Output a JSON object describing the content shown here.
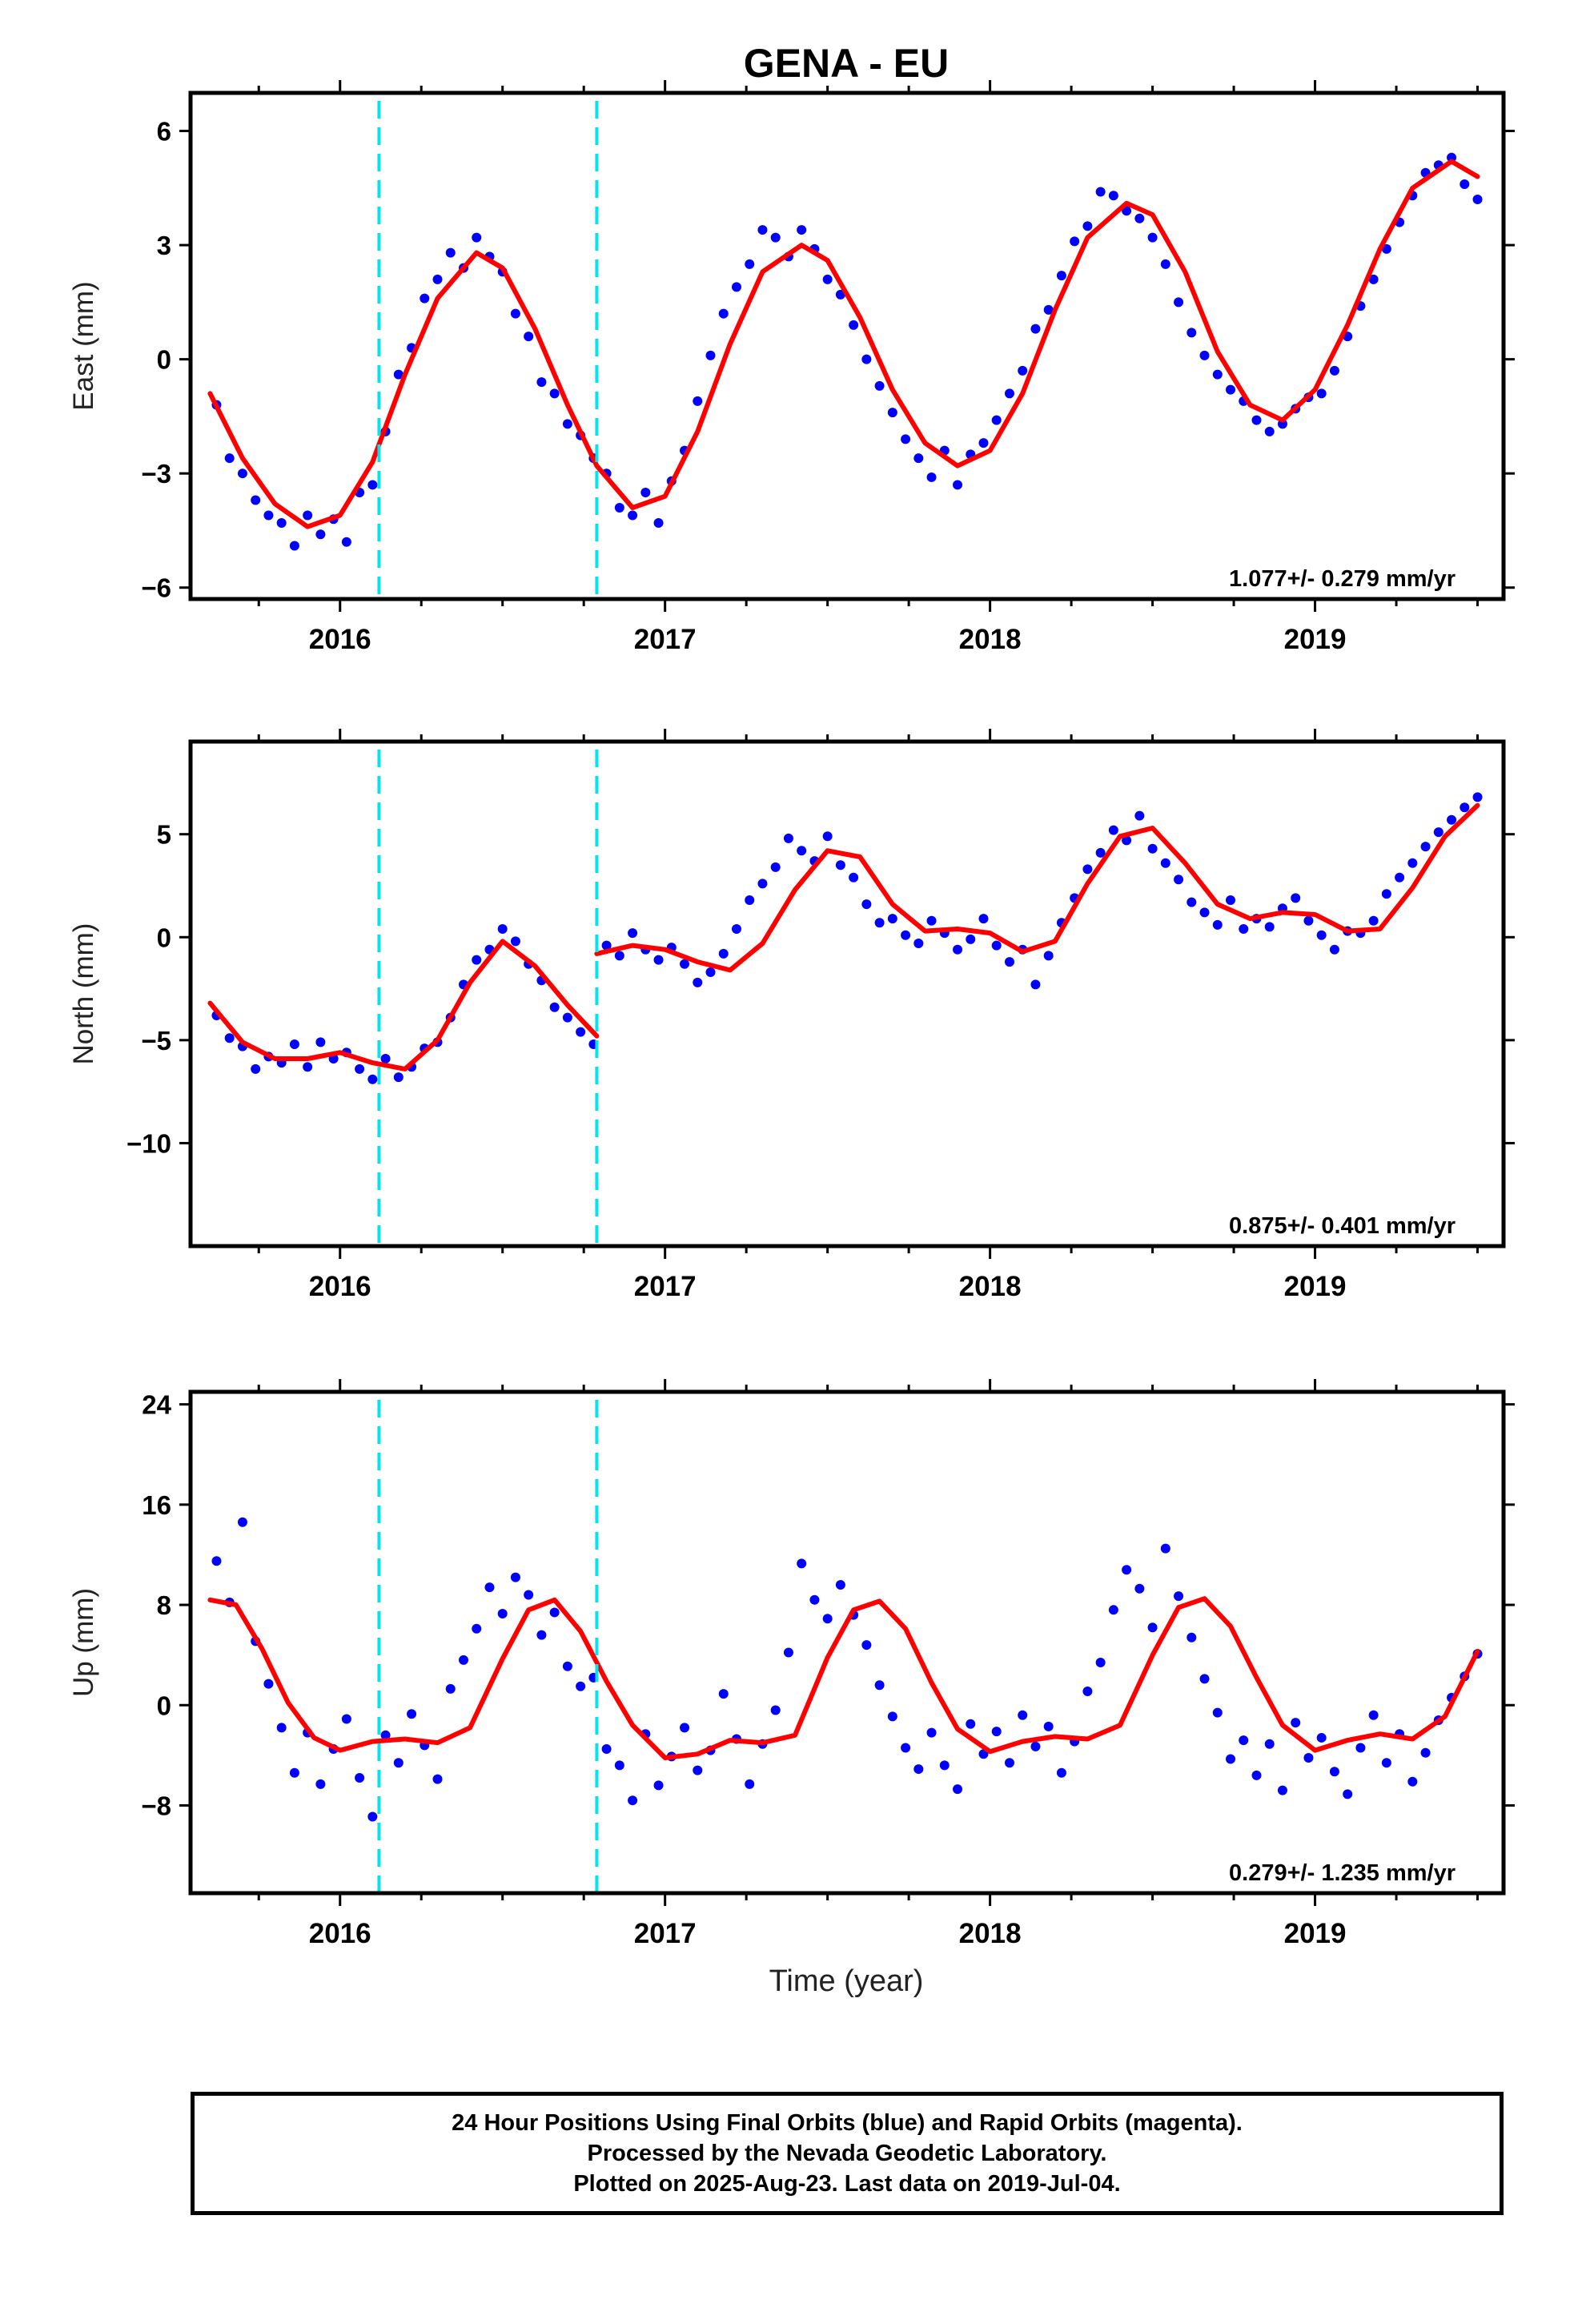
{
  "title": "GENA - EU",
  "footer": {
    "lines": [
      "24 Hour Positions Using Final Orbits (blue) and Rapid Orbits (magenta).",
      "Processed by the Nevada Geodetic Laboratory.",
      "Plotted on 2025-Aug-23. Last data on 2019-Jul-04."
    ]
  },
  "colors": {
    "points": "#0000ff",
    "fit": "#ff0000",
    "steps": "#00e5ee",
    "frame": "#000000"
  },
  "chart_data": [
    {
      "type": "scatter",
      "ylabel": "East (mm)",
      "xlabel": "",
      "xlim": [
        2015.54,
        2019.58
      ],
      "ylim": [
        -6.3,
        7
      ],
      "yticks": [
        -6,
        -3,
        0,
        3,
        6
      ],
      "ytick_labels": [
        "−6",
        "−3",
        "0",
        "3",
        "6"
      ],
      "xticks": [
        2016,
        2017,
        2018,
        2019
      ],
      "xtick_labels": [
        "2016",
        "2017",
        "2018",
        "2019"
      ],
      "steps": [
        2016.12,
        2016.79
      ],
      "rate_label": "1.077+/- 0.279 mm/yr",
      "series": [
        {
          "kind": "points",
          "x": [
            2015.62,
            2015.66,
            2015.7,
            2015.74,
            2015.78,
            2015.82,
            2015.86,
            2015.9,
            2015.94,
            2015.98,
            2016.02,
            2016.06,
            2016.1,
            2016.14,
            2016.18,
            2016.22,
            2016.26,
            2016.3,
            2016.34,
            2016.38,
            2016.42,
            2016.46,
            2016.5,
            2016.54,
            2016.58,
            2016.62,
            2016.66,
            2016.7,
            2016.74,
            2016.78,
            2016.82,
            2016.86,
            2016.9,
            2016.94,
            2016.98,
            2017.02,
            2017.06,
            2017.1,
            2017.14,
            2017.18,
            2017.22,
            2017.26,
            2017.3,
            2017.34,
            2017.38,
            2017.42,
            2017.46,
            2017.5,
            2017.54,
            2017.58,
            2017.62,
            2017.66,
            2017.7,
            2017.74,
            2017.78,
            2017.82,
            2017.86,
            2017.9,
            2017.94,
            2017.98,
            2018.02,
            2018.06,
            2018.1,
            2018.14,
            2018.18,
            2018.22,
            2018.26,
            2018.3,
            2018.34,
            2018.38,
            2018.42,
            2018.46,
            2018.5,
            2018.54,
            2018.58,
            2018.62,
            2018.66,
            2018.7,
            2018.74,
            2018.78,
            2018.82,
            2018.86,
            2018.9,
            2018.94,
            2018.98,
            2019.02,
            2019.06,
            2019.1,
            2019.14,
            2019.18,
            2019.22,
            2019.26,
            2019.3,
            2019.34,
            2019.38,
            2019.42,
            2019.46,
            2019.5
          ],
          "y": [
            -1.2,
            -2.6,
            -3.0,
            -3.7,
            -4.1,
            -4.3,
            -4.9,
            -4.1,
            -4.6,
            -4.2,
            -4.8,
            -3.5,
            -3.3,
            -1.9,
            -0.4,
            0.3,
            1.6,
            2.1,
            2.8,
            2.4,
            3.2,
            2.7,
            2.3,
            1.2,
            0.6,
            -0.6,
            -0.9,
            -1.7,
            -2.0,
            -2.6,
            -3.0,
            -3.9,
            -4.1,
            -3.5,
            -4.3,
            -3.2,
            -2.4,
            -1.1,
            0.1,
            1.2,
            1.9,
            2.5,
            3.4,
            3.2,
            2.7,
            3.4,
            2.9,
            2.1,
            1.7,
            0.9,
            0.0,
            -0.7,
            -1.4,
            -2.1,
            -2.6,
            -3.1,
            -2.4,
            -3.3,
            -2.5,
            -2.2,
            -1.6,
            -0.9,
            -0.3,
            0.8,
            1.3,
            2.2,
            3.1,
            3.5,
            4.4,
            4.3,
            3.9,
            3.7,
            3.2,
            2.5,
            1.5,
            0.7,
            0.1,
            -0.4,
            -0.8,
            -1.1,
            -1.6,
            -1.9,
            -1.7,
            -1.3,
            -1.0,
            -0.9,
            -0.3,
            0.6,
            1.4,
            2.1,
            2.9,
            3.6,
            4.3,
            4.9,
            5.1,
            5.3,
            4.6,
            4.2
          ]
        },
        {
          "kind": "fit",
          "x": [
            2015.6,
            2015.7,
            2015.8,
            2015.9,
            2016.0,
            2016.1,
            2016.2,
            2016.3,
            2016.42,
            2016.5,
            2016.6,
            2016.7,
            2016.79,
            2016.9,
            2017.0,
            2017.1,
            2017.2,
            2017.3,
            2017.42,
            2017.5,
            2017.6,
            2017.7,
            2017.8,
            2017.9,
            2018.0,
            2018.1,
            2018.2,
            2018.3,
            2018.42,
            2018.5,
            2018.6,
            2018.7,
            2018.8,
            2018.9,
            2019.0,
            2019.1,
            2019.2,
            2019.3,
            2019.42,
            2019.5
          ],
          "y": [
            -0.9,
            -2.6,
            -3.8,
            -4.4,
            -4.1,
            -2.7,
            -0.4,
            1.6,
            2.8,
            2.4,
            0.8,
            -1.2,
            -2.8,
            -3.9,
            -3.6,
            -1.9,
            0.4,
            2.3,
            3.0,
            2.6,
            1.1,
            -0.8,
            -2.2,
            -2.8,
            -2.4,
            -0.9,
            1.3,
            3.2,
            4.1,
            3.8,
            2.3,
            0.2,
            -1.2,
            -1.6,
            -0.8,
            0.9,
            2.9,
            4.5,
            5.2,
            4.8
          ]
        }
      ]
    },
    {
      "type": "scatter",
      "ylabel": "North (mm)",
      "xlabel": "",
      "xlim": [
        2015.54,
        2019.58
      ],
      "ylim": [
        -15,
        9.5
      ],
      "yticks": [
        -10,
        -5,
        0,
        5
      ],
      "ytick_labels": [
        "−10",
        "−5",
        "0",
        "5"
      ],
      "xticks": [
        2016,
        2017,
        2018,
        2019
      ],
      "xtick_labels": [
        "2016",
        "2017",
        "2018",
        "2019"
      ],
      "steps": [
        2016.12,
        2016.79
      ],
      "rate_label": "0.875+/- 0.401 mm/yr",
      "series": [
        {
          "kind": "points",
          "x": [
            2015.62,
            2015.66,
            2015.7,
            2015.74,
            2015.78,
            2015.82,
            2015.86,
            2015.9,
            2015.94,
            2015.98,
            2016.02,
            2016.06,
            2016.1,
            2016.14,
            2016.18,
            2016.22,
            2016.26,
            2016.3,
            2016.34,
            2016.38,
            2016.42,
            2016.46,
            2016.5,
            2016.54,
            2016.58,
            2016.62,
            2016.66,
            2016.7,
            2016.74,
            2016.78,
            2016.82,
            2016.86,
            2016.9,
            2016.94,
            2016.98,
            2017.02,
            2017.06,
            2017.1,
            2017.14,
            2017.18,
            2017.22,
            2017.26,
            2017.3,
            2017.34,
            2017.38,
            2017.42,
            2017.46,
            2017.5,
            2017.54,
            2017.58,
            2017.62,
            2017.66,
            2017.7,
            2017.74,
            2017.78,
            2017.82,
            2017.86,
            2017.9,
            2017.94,
            2017.98,
            2018.02,
            2018.06,
            2018.1,
            2018.14,
            2018.18,
            2018.22,
            2018.26,
            2018.3,
            2018.34,
            2018.38,
            2018.42,
            2018.46,
            2018.5,
            2018.54,
            2018.58,
            2018.62,
            2018.66,
            2018.7,
            2018.74,
            2018.78,
            2018.82,
            2018.86,
            2018.9,
            2018.94,
            2018.98,
            2019.02,
            2019.06,
            2019.1,
            2019.14,
            2019.18,
            2019.22,
            2019.26,
            2019.3,
            2019.34,
            2019.38,
            2019.42,
            2019.46,
            2019.5
          ],
          "y": [
            -3.8,
            -4.9,
            -5.3,
            -6.4,
            -5.8,
            -6.1,
            -5.2,
            -6.3,
            -5.1,
            -5.9,
            -5.6,
            -6.4,
            -6.9,
            -5.9,
            -6.8,
            -6.3,
            -5.4,
            -5.1,
            -3.9,
            -2.3,
            -1.1,
            -0.6,
            0.4,
            -0.2,
            -1.3,
            -2.1,
            -3.4,
            -3.9,
            -4.6,
            -5.2,
            -0.4,
            -0.9,
            0.2,
            -0.6,
            -1.1,
            -0.5,
            -1.3,
            -2.2,
            -1.7,
            -0.8,
            0.4,
            1.8,
            2.6,
            3.4,
            4.8,
            4.2,
            3.7,
            4.9,
            3.5,
            2.9,
            1.6,
            0.7,
            0.9,
            0.1,
            -0.3,
            0.8,
            0.2,
            -0.6,
            -0.1,
            0.9,
            -0.4,
            -1.2,
            -0.6,
            -2.3,
            -0.9,
            0.7,
            1.9,
            3.3,
            4.1,
            5.2,
            4.7,
            5.9,
            4.3,
            3.6,
            2.8,
            1.7,
            1.2,
            0.6,
            1.8,
            0.4,
            0.9,
            0.5,
            1.4,
            1.9,
            0.8,
            0.1,
            -0.6,
            0.3,
            0.2,
            0.8,
            2.1,
            2.9,
            3.6,
            4.4,
            5.1,
            5.7,
            6.3,
            6.8
          ]
        },
        {
          "kind": "fit",
          "x": [
            2015.6,
            2015.7,
            2015.8,
            2015.9,
            2016.0,
            2016.1,
            2016.2,
            2016.3,
            2016.4,
            2016.5,
            2016.6,
            2016.7,
            2016.79
          ],
          "y": [
            -3.2,
            -5.1,
            -5.9,
            -5.9,
            -5.6,
            -6.1,
            -6.4,
            -5.0,
            -2.2,
            -0.2,
            -1.4,
            -3.3,
            -4.8
          ]
        },
        {
          "kind": "fit",
          "x": [
            2016.79,
            2016.9,
            2017.0,
            2017.1,
            2017.2,
            2017.3,
            2017.4,
            2017.5,
            2017.6,
            2017.7,
            2017.8,
            2017.9,
            2018.0,
            2018.1,
            2018.2,
            2018.3,
            2018.4,
            2018.5,
            2018.6,
            2018.7,
            2018.8,
            2018.9,
            2019.0,
            2019.1,
            2019.2,
            2019.3,
            2019.4,
            2019.5
          ],
          "y": [
            -0.8,
            -0.4,
            -0.6,
            -1.2,
            -1.6,
            -0.3,
            2.3,
            4.2,
            3.9,
            1.6,
            0.3,
            0.4,
            0.2,
            -0.7,
            -0.2,
            2.6,
            4.9,
            5.3,
            3.6,
            1.6,
            0.9,
            1.2,
            1.1,
            0.3,
            0.4,
            2.4,
            4.9,
            6.4
          ]
        }
      ]
    },
    {
      "type": "scatter",
      "ylabel": "Up (mm)",
      "xlabel": "Time (year)",
      "xlim": [
        2015.54,
        2019.58
      ],
      "ylim": [
        -15,
        25
      ],
      "yticks": [
        -8,
        0,
        8,
        16,
        24
      ],
      "ytick_labels": [
        "−8",
        "0",
        "8",
        "16",
        "24"
      ],
      "xticks": [
        2016,
        2017,
        2018,
        2019
      ],
      "xtick_labels": [
        "2016",
        "2017",
        "2018",
        "2019"
      ],
      "steps": [
        2016.12,
        2016.79
      ],
      "rate_label": "0.279+/- 1.235 mm/yr",
      "series": [
        {
          "kind": "points",
          "x": [
            2015.62,
            2015.66,
            2015.7,
            2015.74,
            2015.78,
            2015.82,
            2015.86,
            2015.9,
            2015.94,
            2015.98,
            2016.02,
            2016.06,
            2016.1,
            2016.14,
            2016.18,
            2016.22,
            2016.26,
            2016.3,
            2016.34,
            2016.38,
            2016.42,
            2016.46,
            2016.5,
            2016.54,
            2016.58,
            2016.62,
            2016.66,
            2016.7,
            2016.74,
            2016.78,
            2016.82,
            2016.86,
            2016.9,
            2016.94,
            2016.98,
            2017.02,
            2017.06,
            2017.1,
            2017.14,
            2017.18,
            2017.22,
            2017.26,
            2017.3,
            2017.34,
            2017.38,
            2017.42,
            2017.46,
            2017.5,
            2017.54,
            2017.58,
            2017.62,
            2017.66,
            2017.7,
            2017.74,
            2017.78,
            2017.82,
            2017.86,
            2017.9,
            2017.94,
            2017.98,
            2018.02,
            2018.06,
            2018.1,
            2018.14,
            2018.18,
            2018.22,
            2018.26,
            2018.3,
            2018.34,
            2018.38,
            2018.42,
            2018.46,
            2018.5,
            2018.54,
            2018.58,
            2018.62,
            2018.66,
            2018.7,
            2018.74,
            2018.78,
            2018.82,
            2018.86,
            2018.9,
            2018.94,
            2018.98,
            2019.02,
            2019.06,
            2019.1,
            2019.14,
            2019.18,
            2019.22,
            2019.26,
            2019.3,
            2019.34,
            2019.38,
            2019.42,
            2019.46,
            2019.5
          ],
          "y": [
            11.5,
            8.2,
            14.6,
            5.1,
            1.7,
            -1.8,
            -5.4,
            -2.2,
            -6.3,
            -3.5,
            -1.1,
            -5.8,
            -8.9,
            -2.4,
            -4.6,
            -0.7,
            -3.2,
            -5.9,
            1.3,
            3.6,
            6.1,
            9.4,
            7.3,
            10.2,
            8.8,
            5.6,
            7.4,
            3.1,
            1.5,
            2.2,
            -3.5,
            -4.8,
            -7.6,
            -2.3,
            -6.4,
            -4.1,
            -1.8,
            -5.2,
            -3.6,
            0.9,
            -2.7,
            -6.3,
            -3.1,
            -0.4,
            4.2,
            11.3,
            8.4,
            6.9,
            9.6,
            7.2,
            4.8,
            1.6,
            -0.9,
            -3.4,
            -5.1,
            -2.2,
            -4.8,
            -6.7,
            -1.5,
            -3.9,
            -2.1,
            -4.6,
            -0.8,
            -3.3,
            -1.7,
            -5.4,
            -2.9,
            1.1,
            3.4,
            7.6,
            10.8,
            9.3,
            6.2,
            12.5,
            8.7,
            5.4,
            2.1,
            -0.6,
            -4.3,
            -2.8,
            -5.6,
            -3.1,
            -6.8,
            -1.4,
            -4.2,
            -2.6,
            -5.3,
            -7.1,
            -3.4,
            -0.8,
            -4.6,
            -2.3,
            -6.1,
            -3.8,
            -1.2,
            0.6,
            2.3,
            4.1
          ]
        },
        {
          "kind": "fit",
          "x": [
            2015.6,
            2015.68,
            2015.76,
            2015.84,
            2015.92,
            2016.0,
            2016.1,
            2016.2,
            2016.3,
            2016.4,
            2016.5,
            2016.58,
            2016.66,
            2016.74,
            2016.82,
            2016.9,
            2017.0,
            2017.1,
            2017.2,
            2017.3,
            2017.4,
            2017.5,
            2017.58,
            2017.66,
            2017.74,
            2017.82,
            2017.9,
            2018.0,
            2018.1,
            2018.2,
            2018.3,
            2018.4,
            2018.5,
            2018.58,
            2018.66,
            2018.74,
            2018.82,
            2018.9,
            2019.0,
            2019.1,
            2019.2,
            2019.3,
            2019.4,
            2019.5
          ],
          "y": [
            8.4,
            8.0,
            4.5,
            0.2,
            -2.6,
            -3.6,
            -2.9,
            -2.7,
            -3.0,
            -1.8,
            3.7,
            7.6,
            8.4,
            5.9,
            1.9,
            -1.6,
            -4.2,
            -3.9,
            -2.8,
            -3.0,
            -2.4,
            3.8,
            7.6,
            8.3,
            6.1,
            1.8,
            -1.9,
            -3.7,
            -2.9,
            -2.5,
            -2.7,
            -1.6,
            4.0,
            7.8,
            8.5,
            6.3,
            2.2,
            -1.6,
            -3.6,
            -2.8,
            -2.3,
            -2.7,
            -0.9,
            4.3
          ]
        }
      ]
    }
  ]
}
